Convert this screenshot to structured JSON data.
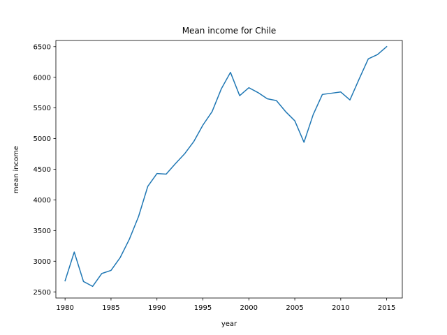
{
  "chart_data": {
    "type": "line",
    "title": "Mean income for Chile",
    "xlabel": "year",
    "ylabel": "mean income",
    "xlim": [
      1979,
      2016.7
    ],
    "ylim": [
      2400,
      6600
    ],
    "x_ticks": [
      1980,
      1985,
      1990,
      1995,
      2000,
      2005,
      2010,
      2015
    ],
    "y_ticks": [
      2500,
      3000,
      3500,
      4000,
      4500,
      5000,
      5500,
      6000,
      6500
    ],
    "grid": false,
    "series": [
      {
        "color": "#1f77b4",
        "x": [
          1980,
          1981,
          1982,
          1983,
          1984,
          1985,
          1986,
          1987,
          1988,
          1989,
          1990,
          1991,
          1992,
          1993,
          1994,
          1995,
          1996,
          1997,
          1998,
          1999,
          2000,
          2001,
          2002,
          2003,
          2004,
          2005,
          2006,
          2007,
          2008,
          2009,
          2010,
          2011,
          2012,
          2013,
          2014,
          2015
        ],
        "y": [
          2680,
          3150,
          2670,
          2590,
          2800,
          2850,
          3060,
          3360,
          3730,
          4220,
          4430,
          4420,
          4590,
          4750,
          4950,
          5220,
          5440,
          5810,
          6080,
          5700,
          5830,
          5750,
          5650,
          5620,
          5440,
          5290,
          4940,
          5390,
          5720,
          5740,
          5760,
          5630,
          5970,
          6300,
          6370,
          6500
        ]
      }
    ]
  }
}
